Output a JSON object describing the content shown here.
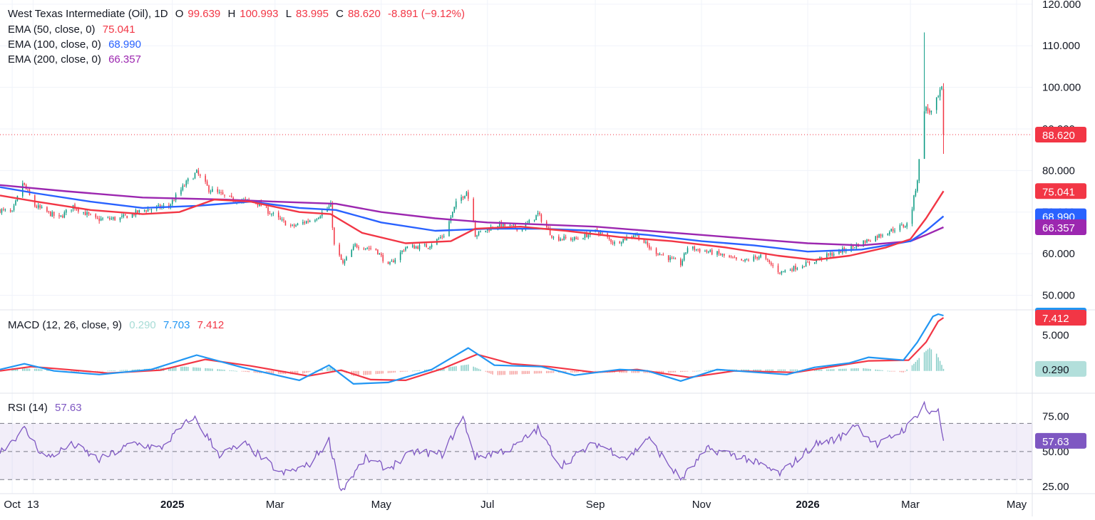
{
  "legend": {
    "symbol": "West Texas Intermediate (Oil), 1D",
    "ohlc": [
      {
        "k": "O",
        "v": "99.639"
      },
      {
        "k": "H",
        "v": "100.993"
      },
      {
        "k": "L",
        "v": "83.995"
      },
      {
        "k": "C",
        "v": "88.620"
      }
    ],
    "change": "-8.891 (−9.12%)",
    "ema": [
      {
        "label": "EMA (50, close, 0)",
        "value": "75.041",
        "color": "#f23645"
      },
      {
        "label": "EMA (100, close, 0)",
        "value": "68.990",
        "color": "#2962ff"
      },
      {
        "label": "EMA (200, close, 0)",
        "value": "66.357",
        "color": "#9c27b0"
      }
    ],
    "macd": {
      "label": "MACD (12, 26, close, 9)",
      "hist": "0.290",
      "macd": "7.703",
      "signal": "7.412"
    },
    "rsi": {
      "label": "RSI (14)",
      "value": "57.63"
    }
  },
  "colors": {
    "up": "#089981",
    "down": "#f23645",
    "ema50": "#f23645",
    "ema100": "#2962ff",
    "ema200": "#9c27b0",
    "macd": "#2196f3",
    "signal": "#f23645",
    "rsi": "#7e57c2",
    "hist_up": "#26a69a",
    "hist_down": "#ef5350"
  },
  "chart_data": {
    "type": "candlestick",
    "title": "West Texas Intermediate (Oil), 1D",
    "x_axis": {
      "ticks": [
        "Oct",
        "13",
        "2025",
        "Mar",
        "May",
        "Jul",
        "Sep",
        "Nov",
        "2026",
        "Mar",
        "May"
      ],
      "tick_dates": [
        "2024-10-01",
        "2024-10-13",
        "2025-01-01",
        "2025-03-01",
        "2025-05-01",
        "2025-07-01",
        "2025-09-01",
        "2025-11-01",
        "2026-01-01",
        "2026-03-01",
        "2026-05-01"
      ],
      "range": [
        "2024-09-24",
        "2026-05-10"
      ]
    },
    "price_axis": {
      "ticks": [
        "120.000",
        "110.000",
        "100.000",
        "90.000",
        "80.000",
        "70.000",
        "60.000",
        "50.000"
      ],
      "range": [
        47,
        121
      ]
    },
    "last_price": "88.620",
    "price_labels": [
      {
        "value": "88.620",
        "price": 88.62,
        "color": "#f23645"
      },
      {
        "value": "75.041",
        "price": 75.041,
        "color": "#f23645"
      },
      {
        "value": "68.990",
        "price": 68.99,
        "color": "#2962ff"
      },
      {
        "value": "66.357",
        "price": 66.357,
        "color": "#9c27b0"
      }
    ],
    "price_series": [
      [
        "2024-09-24",
        70.5
      ],
      [
        "2024-10-01",
        69.8
      ],
      [
        "2024-10-07",
        77.0
      ],
      [
        "2024-10-14",
        71.5
      ],
      [
        "2024-10-28",
        68.5
      ],
      [
        "2024-11-05",
        71.5
      ],
      [
        "2024-11-18",
        68.2
      ],
      [
        "2024-12-02",
        68.5
      ],
      [
        "2024-12-16",
        70.5
      ],
      [
        "2024-12-30",
        71.5
      ],
      [
        "2025-01-10",
        77.5
      ],
      [
        "2025-01-15",
        79.5
      ],
      [
        "2025-01-22",
        75.5
      ],
      [
        "2025-02-04",
        73.0
      ],
      [
        "2025-02-18",
        72.5
      ],
      [
        "2025-03-04",
        68.0
      ],
      [
        "2025-03-11",
        66.5
      ],
      [
        "2025-03-24",
        68.5
      ],
      [
        "2025-04-02",
        71.5
      ],
      [
        "2025-04-04",
        62.0
      ],
      [
        "2025-04-09",
        57.5
      ],
      [
        "2025-04-16",
        62.0
      ],
      [
        "2025-04-28",
        61.0
      ],
      [
        "2025-05-05",
        57.0
      ],
      [
        "2025-05-15",
        61.5
      ],
      [
        "2025-05-28",
        61.8
      ],
      [
        "2025-06-06",
        64.5
      ],
      [
        "2025-06-13",
        72.0
      ],
      [
        "2025-06-19",
        75.0
      ],
      [
        "2025-06-23",
        68.5
      ],
      [
        "2025-06-24",
        64.5
      ],
      [
        "2025-07-07",
        67.0
      ],
      [
        "2025-07-21",
        66.0
      ],
      [
        "2025-07-30",
        69.5
      ],
      [
        "2025-08-08",
        63.8
      ],
      [
        "2025-08-21",
        63.5
      ],
      [
        "2025-09-02",
        65.5
      ],
      [
        "2025-09-12",
        62.5
      ],
      [
        "2025-09-24",
        64.8
      ],
      [
        "2025-10-03",
        61.0
      ],
      [
        "2025-10-20",
        57.5
      ],
      [
        "2025-10-24",
        61.5
      ],
      [
        "2025-11-10",
        60.0
      ],
      [
        "2025-11-24",
        58.0
      ],
      [
        "2025-12-05",
        59.5
      ],
      [
        "2025-12-16",
        55.5
      ],
      [
        "2025-12-31",
        57.5
      ],
      [
        "2026-01-12",
        59.5
      ],
      [
        "2026-01-26",
        61.5
      ],
      [
        "2026-02-06",
        63.5
      ],
      [
        "2026-02-20",
        66.0
      ],
      [
        "2026-02-27",
        67.0
      ],
      [
        "2026-03-02",
        71.0
      ],
      [
        "2026-03-05",
        78.0
      ],
      [
        "2026-03-09",
        95.0
      ],
      [
        "2026-03-13",
        94.0
      ],
      [
        "2026-03-17",
        97.5
      ],
      [
        "2026-03-19",
        99.6
      ],
      [
        "2026-03-20",
        88.62
      ]
    ],
    "wicks": [
      {
        "date": "2026-03-09",
        "high": 113.2,
        "low": 83.5
      },
      {
        "date": "2026-03-20",
        "high": 100.993,
        "low": 83.995
      }
    ],
    "ema50": [
      [
        "2024-09-24",
        74.0
      ],
      [
        "2024-10-15",
        72.5
      ],
      [
        "2024-11-15",
        70.5
      ],
      [
        "2024-12-15",
        69.5
      ],
      [
        "2025-01-05",
        70.0
      ],
      [
        "2025-01-25",
        73.0
      ],
      [
        "2025-02-15",
        72.5
      ],
      [
        "2025-03-15",
        70.0
      ],
      [
        "2025-04-02",
        69.5
      ],
      [
        "2025-04-20",
        65.0
      ],
      [
        "2025-05-15",
        62.5
      ],
      [
        "2025-06-10",
        63.0
      ],
      [
        "2025-06-24",
        66.0
      ],
      [
        "2025-07-20",
        66.5
      ],
      [
        "2025-08-15",
        65.5
      ],
      [
        "2025-09-15",
        64.0
      ],
      [
        "2025-10-15",
        63.0
      ],
      [
        "2025-11-15",
        61.5
      ],
      [
        "2025-12-15",
        59.5
      ],
      [
        "2026-01-05",
        58.5
      ],
      [
        "2026-01-25",
        59.5
      ],
      [
        "2026-02-15",
        61.5
      ],
      [
        "2026-03-01",
        63.5
      ],
      [
        "2026-03-10",
        68.5
      ],
      [
        "2026-03-20",
        75.041
      ]
    ],
    "ema100": [
      [
        "2024-09-24",
        76.0
      ],
      [
        "2024-10-15",
        74.5
      ],
      [
        "2024-11-15",
        72.5
      ],
      [
        "2024-12-15",
        71.0
      ],
      [
        "2025-01-15",
        71.5
      ],
      [
        "2025-02-15",
        72.5
      ],
      [
        "2025-03-15",
        71.0
      ],
      [
        "2025-04-05",
        70.5
      ],
      [
        "2025-05-01",
        67.5
      ],
      [
        "2025-06-01",
        65.5
      ],
      [
        "2025-07-01",
        66.0
      ],
      [
        "2025-08-01",
        66.0
      ],
      [
        "2025-09-01",
        65.5
      ],
      [
        "2025-10-01",
        64.5
      ],
      [
        "2025-11-01",
        63.0
      ],
      [
        "2025-12-01",
        62.0
      ],
      [
        "2026-01-01",
        60.5
      ],
      [
        "2026-02-01",
        61.0
      ],
      [
        "2026-03-01",
        63.0
      ],
      [
        "2026-03-10",
        65.5
      ],
      [
        "2026-03-20",
        68.99
      ]
    ],
    "ema200": [
      [
        "2024-09-24",
        76.5
      ],
      [
        "2024-11-01",
        75.0
      ],
      [
        "2024-12-15",
        73.5
      ],
      [
        "2025-02-01",
        73.0
      ],
      [
        "2025-03-01",
        72.5
      ],
      [
        "2025-04-05",
        72.0
      ],
      [
        "2025-05-01",
        70.0
      ],
      [
        "2025-06-01",
        68.5
      ],
      [
        "2025-07-01",
        67.5
      ],
      [
        "2025-08-01",
        67.0
      ],
      [
        "2025-09-01",
        66.5
      ],
      [
        "2025-10-01",
        65.5
      ],
      [
        "2025-11-01",
        64.5
      ],
      [
        "2025-12-01",
        63.5
      ],
      [
        "2026-01-01",
        62.5
      ],
      [
        "2026-02-01",
        62.0
      ],
      [
        "2026-03-01",
        63.0
      ],
      [
        "2026-03-10",
        64.5
      ],
      [
        "2026-03-20",
        66.357
      ]
    ],
    "macd_axis": {
      "ticks": [
        "5.000"
      ],
      "range": [
        -2.8,
        8.2
      ]
    },
    "macd_line": [
      [
        "2024-09-24",
        0.2
      ],
      [
        "2024-10-08",
        1.0
      ],
      [
        "2024-10-25",
        0.0
      ],
      [
        "2024-11-20",
        -0.5
      ],
      [
        "2024-12-20",
        0.2
      ],
      [
        "2025-01-15",
        2.2
      ],
      [
        "2025-02-10",
        0.5
      ],
      [
        "2025-03-15",
        -1.3
      ],
      [
        "2025-04-01",
        0.8
      ],
      [
        "2025-04-15",
        -1.8
      ],
      [
        "2025-05-05",
        -1.6
      ],
      [
        "2025-05-30",
        0.2
      ],
      [
        "2025-06-20",
        3.2
      ],
      [
        "2025-07-05",
        0.8
      ],
      [
        "2025-08-01",
        0.6
      ],
      [
        "2025-08-20",
        -0.6
      ],
      [
        "2025-09-15",
        0.2
      ],
      [
        "2025-10-01",
        0.0
      ],
      [
        "2025-10-20",
        -1.4
      ],
      [
        "2025-11-10",
        0.2
      ],
      [
        "2025-12-20",
        -0.5
      ],
      [
        "2026-01-05",
        0.5
      ],
      [
        "2026-01-25",
        1.1
      ],
      [
        "2026-02-05",
        1.9
      ],
      [
        "2026-02-25",
        1.5
      ],
      [
        "2026-03-05",
        4.0
      ],
      [
        "2026-03-14",
        7.6
      ],
      [
        "2026-03-17",
        7.9
      ],
      [
        "2026-03-20",
        7.703
      ]
    ],
    "signal_line": [
      [
        "2024-09-24",
        0.0
      ],
      [
        "2024-10-12",
        0.6
      ],
      [
        "2024-11-01",
        0.2
      ],
      [
        "2024-11-25",
        -0.3
      ],
      [
        "2024-12-25",
        0.1
      ],
      [
        "2025-01-20",
        1.6
      ],
      [
        "2025-02-15",
        0.7
      ],
      [
        "2025-03-20",
        -0.7
      ],
      [
        "2025-04-08",
        0.1
      ],
      [
        "2025-04-25",
        -1.2
      ],
      [
        "2025-05-15",
        -1.3
      ],
      [
        "2025-06-05",
        0.3
      ],
      [
        "2025-06-25",
        2.3
      ],
      [
        "2025-07-15",
        1.0
      ],
      [
        "2025-08-05",
        0.6
      ],
      [
        "2025-09-01",
        -0.2
      ],
      [
        "2025-09-25",
        0.2
      ],
      [
        "2025-10-25",
        -0.9
      ],
      [
        "2025-11-20",
        0.0
      ],
      [
        "2025-12-25",
        -0.2
      ],
      [
        "2026-01-15",
        0.6
      ],
      [
        "2026-02-05",
        1.4
      ],
      [
        "2026-02-28",
        1.5
      ],
      [
        "2026-03-10",
        4.0
      ],
      [
        "2026-03-17",
        6.9
      ],
      [
        "2026-03-20",
        7.412
      ]
    ],
    "macd_histogram": [
      [
        "2024-10-01",
        0.4
      ],
      [
        "2024-10-15",
        0.3
      ],
      [
        "2024-11-05",
        -0.2
      ],
      [
        "2024-12-10",
        0.2
      ],
      [
        "2025-01-08",
        0.6
      ],
      [
        "2025-01-25",
        0.3
      ],
      [
        "2025-02-20",
        -0.3
      ],
      [
        "2025-03-15",
        -0.5
      ],
      [
        "2025-04-02",
        0.6
      ],
      [
        "2025-04-15",
        -0.7
      ],
      [
        "2025-05-05",
        -0.3
      ],
      [
        "2025-06-05",
        0.4
      ],
      [
        "2025-06-20",
        0.9
      ],
      [
        "2025-07-05",
        -0.6
      ],
      [
        "2025-08-15",
        -0.2
      ],
      [
        "2025-10-10",
        -0.3
      ],
      [
        "2025-11-10",
        0.2
      ],
      [
        "2026-01-10",
        0.2
      ],
      [
        "2026-02-01",
        0.4
      ],
      [
        "2026-02-25",
        -0.2
      ],
      [
        "2026-03-03",
        1.0
      ],
      [
        "2026-03-06",
        1.8
      ],
      [
        "2026-03-09",
        2.6
      ],
      [
        "2026-03-12",
        3.2
      ],
      [
        "2026-03-16",
        2.4
      ],
      [
        "2026-03-18",
        1.4
      ],
      [
        "2026-03-20",
        0.29
      ]
    ],
    "price_label_macd": [
      {
        "value": "7.703",
        "level": 7.703,
        "color": "#2196f3"
      },
      {
        "value": "7.412",
        "level": 7.412,
        "color": "#f23645"
      },
      {
        "value": "0.290",
        "level": 0.29,
        "color": "#b2dfdb"
      }
    ],
    "rsi_axis": {
      "ticks": [
        "75.00",
        "50.00",
        "25.00"
      ],
      "range": [
        20,
        90
      ],
      "band": [
        30,
        70
      ]
    },
    "rsi_series": [
      [
        "2024-09-24",
        50
      ],
      [
        "2024-10-08",
        66
      ],
      [
        "2024-10-20",
        45
      ],
      [
        "2024-11-05",
        55
      ],
      [
        "2024-11-20",
        44
      ],
      [
        "2024-12-10",
        56
      ],
      [
        "2024-12-25",
        52
      ],
      [
        "2025-01-13",
        75
      ],
      [
        "2025-01-28",
        48
      ],
      [
        "2025-02-12",
        55
      ],
      [
        "2025-03-05",
        34
      ],
      [
        "2025-03-20",
        40
      ],
      [
        "2025-04-01",
        58
      ],
      [
        "2025-04-08",
        22
      ],
      [
        "2025-04-22",
        45
      ],
      [
        "2025-05-05",
        38
      ],
      [
        "2025-05-20",
        50
      ],
      [
        "2025-06-05",
        48
      ],
      [
        "2025-06-17",
        74
      ],
      [
        "2025-06-24",
        46
      ],
      [
        "2025-07-15",
        52
      ],
      [
        "2025-07-30",
        66
      ],
      [
        "2025-08-12",
        40
      ],
      [
        "2025-09-01",
        56
      ],
      [
        "2025-09-20",
        45
      ],
      [
        "2025-10-01",
        60
      ],
      [
        "2025-10-20",
        30
      ],
      [
        "2025-11-05",
        52
      ],
      [
        "2025-11-25",
        46
      ],
      [
        "2025-12-16",
        34
      ],
      [
        "2026-01-05",
        55
      ],
      [
        "2026-01-20",
        60
      ],
      [
        "2026-01-28",
        70
      ],
      [
        "2026-02-10",
        54
      ],
      [
        "2026-02-20",
        62
      ],
      [
        "2026-02-28",
        68
      ],
      [
        "2026-03-09",
        84
      ],
      [
        "2026-03-12",
        76
      ],
      [
        "2026-03-17",
        80
      ],
      [
        "2026-03-20",
        57.63
      ]
    ]
  }
}
